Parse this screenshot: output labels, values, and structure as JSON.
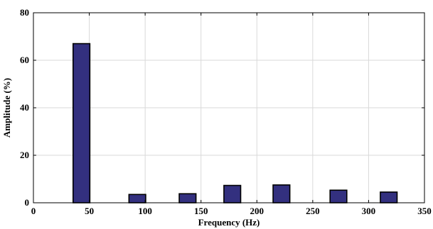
{
  "colors": {
    "bar_fill": "#33307f",
    "bar_stroke": "#000000",
    "grid": "#d9d9d9",
    "axis": "#000000",
    "background": "#ffffff"
  },
  "chart_data": {
    "type": "bar",
    "title": "",
    "xlabel": "Frequency (Hz)",
    "ylabel": "Amplitude (%)",
    "xlim": [
      0,
      350
    ],
    "ylim": [
      0,
      80
    ],
    "xticks": [
      0,
      50,
      100,
      150,
      200,
      250,
      300,
      350
    ],
    "yticks": [
      0,
      20,
      40,
      60,
      80
    ],
    "grid": true,
    "bar_width": 15,
    "series": [
      {
        "x": [
          43,
          93,
          138,
          178,
          222,
          273,
          318
        ],
        "values": [
          67,
          3.5,
          3.8,
          7.3,
          7.5,
          5.3,
          4.5
        ]
      }
    ]
  }
}
